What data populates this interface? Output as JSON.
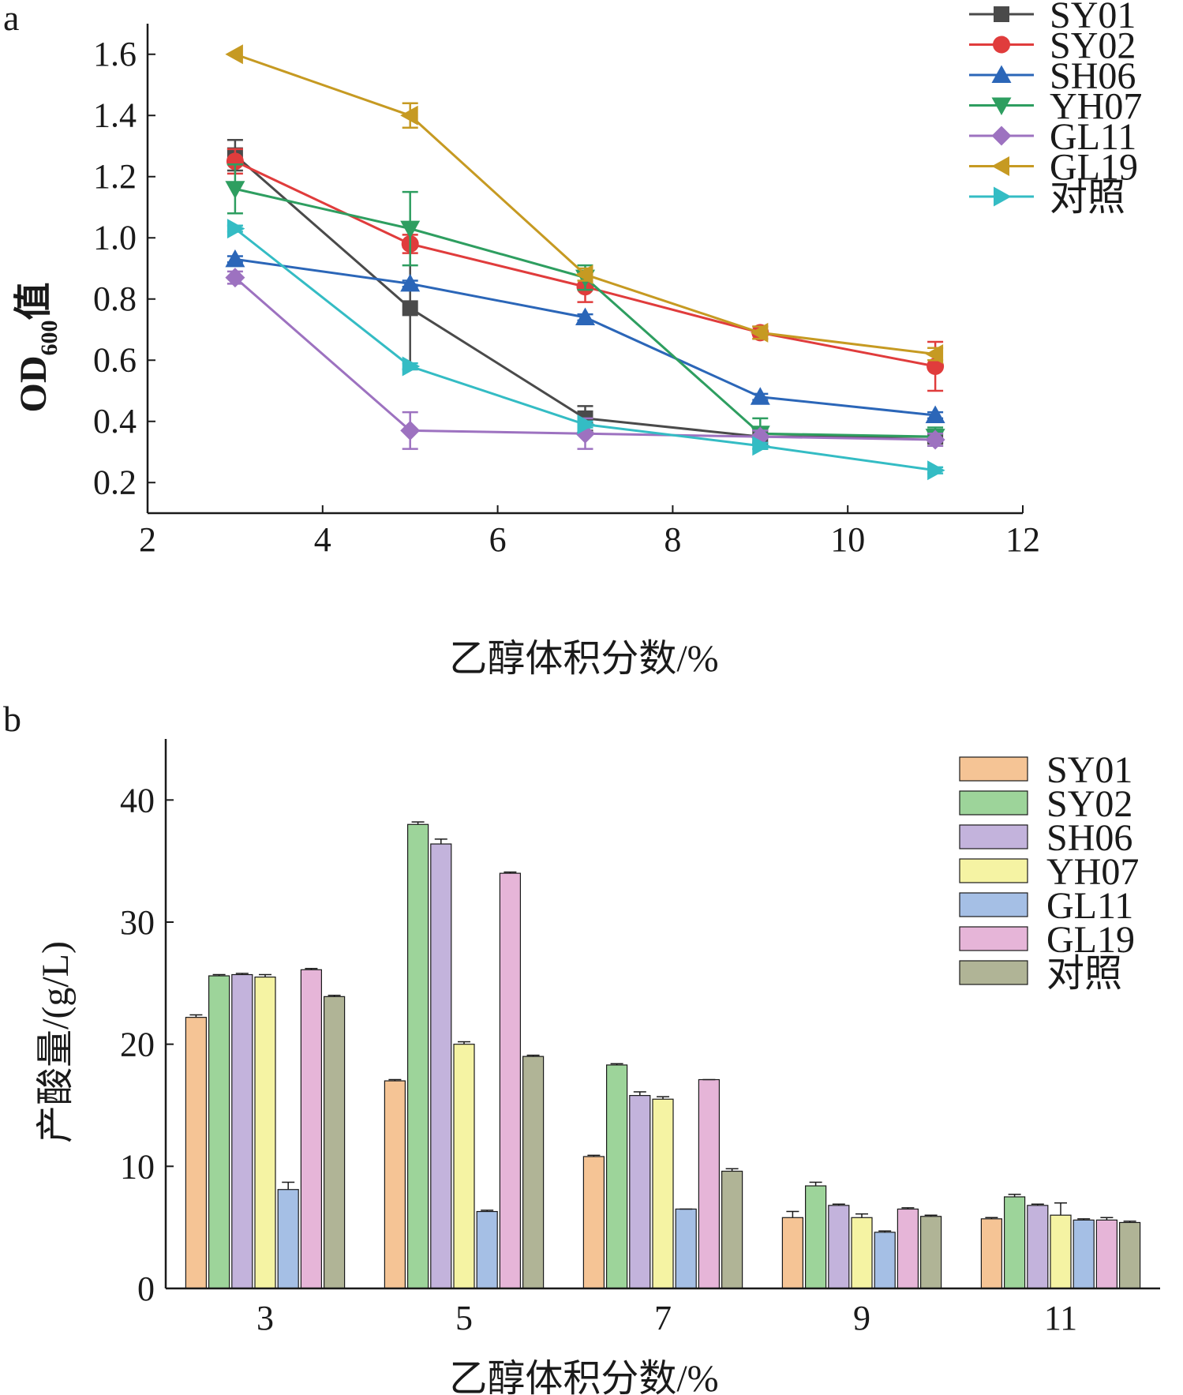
{
  "chart_data": [
    {
      "panel_label": "a",
      "type": "line",
      "xlabel": "乙醇体积分数/%",
      "ylabel_main": "OD",
      "ylabel_sub": "600",
      "ylabel_tail": "值",
      "xlim": [
        2,
        12
      ],
      "ylim": [
        0.1,
        1.7
      ],
      "xticks": [
        "2",
        "4",
        "6",
        "8",
        "10",
        "12"
      ],
      "yticks": [
        "0.2",
        "0.4",
        "0.6",
        "0.8",
        "1.0",
        "1.2",
        "1.4",
        "1.6"
      ],
      "x": [
        3,
        5,
        7,
        9,
        11
      ],
      "legend_position": "top-right",
      "series": [
        {
          "name": "SY01",
          "color": "#4a4a4a",
          "marker": "square",
          "values": [
            1.27,
            0.77,
            0.41,
            0.35,
            0.35
          ],
          "errors": [
            0.05,
            0.2,
            0.04,
            0.02,
            0.02
          ]
        },
        {
          "name": "SY02",
          "color": "#e03c3c",
          "marker": "circle",
          "values": [
            1.25,
            0.98,
            0.84,
            0.69,
            0.58
          ],
          "errors": [
            0.04,
            0.03,
            0.05,
            0.02,
            0.08
          ]
        },
        {
          "name": "SH06",
          "color": "#2b66b8",
          "marker": "triangle-up",
          "values": [
            0.93,
            0.85,
            0.74,
            0.48,
            0.42
          ],
          "errors": [
            0.01,
            0.01,
            0.01,
            0.01,
            0.01
          ]
        },
        {
          "name": "YH07",
          "color": "#2e9e60",
          "marker": "triangle-down",
          "values": [
            1.16,
            1.03,
            0.87,
            0.36,
            0.35
          ],
          "errors": [
            0.08,
            0.12,
            0.04,
            0.05,
            0.03
          ]
        },
        {
          "name": "GL11",
          "color": "#9d72c0",
          "marker": "diamond",
          "values": [
            0.87,
            0.37,
            0.36,
            0.35,
            0.34
          ],
          "errors": [
            0.02,
            0.06,
            0.05,
            0.02,
            0.02
          ]
        },
        {
          "name": "GL19",
          "color": "#c69a22",
          "marker": "triangle-left",
          "values": [
            1.6,
            1.4,
            0.88,
            0.69,
            0.62
          ],
          "errors": [
            0.0,
            0.04,
            0.02,
            0.02,
            0.02
          ]
        },
        {
          "name": "对照",
          "color": "#34bcc4",
          "marker": "triangle-right",
          "values": [
            1.03,
            0.58,
            0.39,
            0.32,
            0.24
          ],
          "errors": [
            0.01,
            0.01,
            0.01,
            0.01,
            0.01
          ]
        }
      ]
    },
    {
      "panel_label": "b",
      "type": "bar",
      "xlabel": "乙醇体积分数/%",
      "ylabel": "产酸量/(g/L)",
      "ylim": [
        0,
        45
      ],
      "yticks": [
        "0",
        "10",
        "20",
        "30",
        "40"
      ],
      "categories": [
        "3",
        "5",
        "7",
        "9",
        "11"
      ],
      "legend_position": "top-right",
      "series": [
        {
          "name": "SY01",
          "color": "#f5c495",
          "values": [
            22.2,
            17.0,
            10.8,
            5.8,
            5.7
          ],
          "errors": [
            0.2,
            0.1,
            0.1,
            0.5,
            0.1
          ]
        },
        {
          "name": "SY02",
          "color": "#9dd49a",
          "values": [
            25.6,
            38.0,
            18.3,
            8.4,
            7.5
          ],
          "errors": [
            0.1,
            0.2,
            0.1,
            0.3,
            0.2
          ]
        },
        {
          "name": "SH06",
          "color": "#c3b3dc",
          "values": [
            25.7,
            36.4,
            15.8,
            6.8,
            6.8
          ],
          "errors": [
            0.1,
            0.4,
            0.3,
            0.1,
            0.1
          ]
        },
        {
          "name": "YH07",
          "color": "#f5f3a3",
          "values": [
            25.5,
            20.0,
            15.5,
            5.8,
            6.0
          ],
          "errors": [
            0.2,
            0.2,
            0.2,
            0.3,
            1.0
          ]
        },
        {
          "name": "GL11",
          "color": "#a5bfe5",
          "values": [
            8.1,
            6.3,
            6.5,
            4.6,
            5.6
          ],
          "errors": [
            0.6,
            0.1,
            0.0,
            0.1,
            0.1
          ]
        },
        {
          "name": "GL19",
          "color": "#e6b5d8",
          "values": [
            26.1,
            34.0,
            17.1,
            6.5,
            5.6
          ],
          "errors": [
            0.1,
            0.1,
            0.0,
            0.1,
            0.2
          ]
        },
        {
          "name": "对照",
          "color": "#b0b496",
          "values": [
            23.9,
            19.0,
            9.6,
            5.9,
            5.4
          ],
          "errors": [
            0.1,
            0.1,
            0.2,
            0.1,
            0.1
          ]
        }
      ]
    }
  ]
}
